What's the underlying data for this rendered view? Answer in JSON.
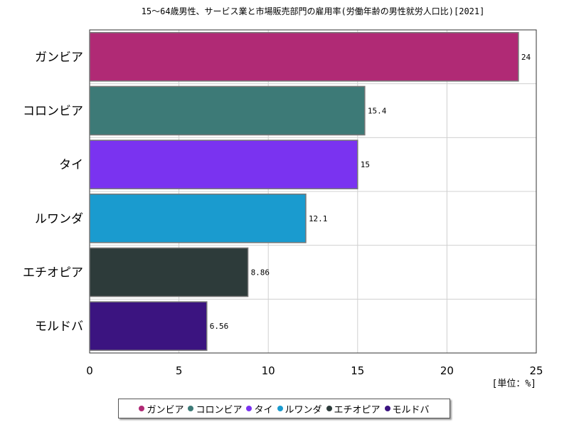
{
  "chart_data": {
    "type": "bar",
    "orientation": "horizontal",
    "title": "15～64歳男性、サービス業と市場販売部門の雇用率(労働年齢の男性就労人口比)[2021]",
    "unit_label": "[単位：%]",
    "categories": [
      "ガンビア",
      "コロンビア",
      "タイ",
      "ルワンダ",
      "エチオピア",
      "モルドバ"
    ],
    "values": [
      24,
      15.4,
      15,
      12.1,
      8.86,
      6.56
    ],
    "value_labels": [
      "24",
      "15.4",
      "15",
      "12.1",
      "8.86",
      "6.56"
    ],
    "colors": [
      "#b02a75",
      "#3d7a77",
      "#7a33f0",
      "#1a9bcf",
      "#2d3b3a",
      "#3b1480"
    ],
    "xlim": [
      0,
      25
    ],
    "xticks": [
      0,
      5,
      10,
      15,
      20,
      25
    ],
    "grid": true,
    "legend_position": "bottom"
  }
}
